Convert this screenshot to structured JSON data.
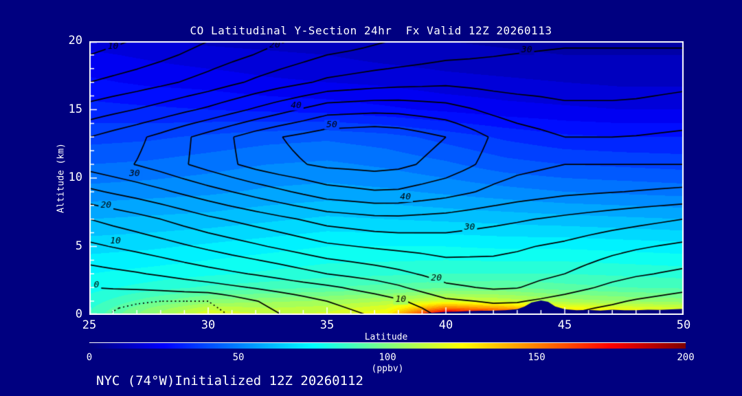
{
  "title": "CO Latitudinal Y-Section 24hr  Fx Valid 12Z 20260113",
  "footer": "NYC (74°W)Initialized 12Z 20260112",
  "colors": {
    "background": "#000080",
    "axis": "#ffffff",
    "text": "#ffffff",
    "contour_line": "#000000",
    "terrain": "#000080"
  },
  "axes": {
    "x": {
      "title": "Latitude",
      "ticks": [
        "25",
        "30",
        "35",
        "40",
        "45",
        "50"
      ]
    },
    "y": {
      "title": "Altitude (km)",
      "ticks": [
        "20",
        "15",
        "10",
        "5",
        "0"
      ]
    }
  },
  "colorbar": {
    "ticks": [
      "0",
      "50",
      "100",
      "150",
      "200"
    ],
    "units": "(ppbv)"
  },
  "chart_data": {
    "type": "heatmap",
    "title": "CO Latitudinal Y-Section 24hr  Fx Valid 12Z 20260113",
    "xlabel": "Latitude",
    "ylabel": "Altitude (km)",
    "xlim": [
      25,
      50
    ],
    "ylim": [
      0,
      20
    ],
    "x_minor_step": 1,
    "y_minor_step": 1,
    "fill_units": "ppbv",
    "fill_range": [
      0,
      200
    ],
    "fill_band_step": 5,
    "colormap": "jet",
    "fill_grid": {
      "lats": [
        25,
        27.5,
        30,
        32.5,
        35,
        37.5,
        40,
        42.5,
        45,
        47.5,
        50
      ],
      "alts": [
        20,
        19,
        17,
        15,
        13,
        11,
        9,
        7,
        5,
        3,
        2,
        1,
        0.5,
        0
      ],
      "values": [
        [
          18,
          16,
          14,
          13,
          12,
          11,
          10,
          9,
          8,
          8,
          8
        ],
        [
          21,
          19,
          17,
          16,
          15,
          13,
          12,
          11,
          10,
          10,
          10
        ],
        [
          26,
          24,
          23,
          21,
          20,
          19,
          17,
          16,
          15,
          14,
          14
        ],
        [
          32,
          31,
          30,
          29,
          28,
          26,
          24,
          22,
          21,
          20,
          20
        ],
        [
          38,
          39,
          41,
          43,
          44,
          42,
          38,
          34,
          31,
          30,
          30
        ],
        [
          45,
          46,
          48,
          50,
          51,
          49,
          46,
          42,
          40,
          39,
          38
        ],
        [
          52,
          53,
          54,
          56,
          57,
          56,
          54,
          52,
          50,
          49,
          48
        ],
        [
          60,
          61,
          62,
          64,
          66,
          65,
          64,
          63,
          62,
          61,
          60
        ],
        [
          68,
          69,
          71,
          73,
          75,
          75,
          75,
          74,
          74,
          73,
          72
        ],
        [
          75,
          77,
          79,
          81,
          83,
          84,
          85,
          85,
          85,
          84,
          83
        ],
        [
          78,
          82,
          86,
          88,
          90,
          92,
          94,
          95,
          92,
          90,
          89
        ],
        [
          82,
          93,
          102,
          104,
          106,
          110,
          118,
          114,
          108,
          105,
          103
        ],
        [
          84,
          100,
          113,
          110,
          112,
          119,
          152,
          142,
          124,
          119,
          116
        ],
        [
          86,
          104,
          120,
          116,
          117,
          126,
          195,
          182,
          140,
          133,
          128
        ]
      ]
    },
    "contour_grid": {
      "lats": [
        25,
        27.5,
        30,
        32.5,
        35,
        37.5,
        40,
        42.5,
        45,
        47.5,
        50
      ],
      "alts": [
        20,
        19,
        17,
        15,
        13,
        11,
        9,
        7,
        5,
        3,
        2,
        1,
        0.5,
        0
      ],
      "values": [
        [
          8,
          11,
          15,
          19,
          22,
          25,
          27,
          28,
          29,
          29,
          29
        ],
        [
          10,
          13,
          17,
          21,
          25,
          27,
          29,
          30,
          31,
          31,
          31
        ],
        [
          15,
          18,
          22,
          27,
          31,
          33,
          34,
          33,
          33,
          33,
          34
        ],
        [
          22,
          26,
          31,
          37,
          43,
          44,
          42,
          38,
          36,
          36,
          37
        ],
        [
          30,
          35,
          42,
          49,
          53,
          54,
          50,
          43,
          40,
          40,
          41
        ],
        [
          32,
          36,
          42,
          48,
          51,
          52,
          48,
          42,
          40,
          40,
          40
        ],
        [
          24,
          28,
          33,
          38,
          43,
          45,
          42,
          38,
          36,
          35,
          34
        ],
        [
          15,
          19,
          24,
          28,
          32,
          34,
          33,
          31,
          29,
          27,
          25
        ],
        [
          9,
          12,
          16,
          20,
          24,
          26,
          27,
          26,
          24,
          21,
          19
        ],
        [
          3,
          5,
          8,
          11,
          15,
          18,
          22,
          23,
          20,
          16,
          14
        ],
        [
          0,
          1,
          3,
          6,
          9,
          13,
          19,
          21,
          17,
          13,
          11
        ],
        [
          -3,
          -5,
          -5,
          1,
          5,
          8,
          14,
          16,
          13,
          10,
          8
        ],
        [
          -4,
          -6,
          -6,
          0,
          4,
          7,
          12,
          14,
          11,
          9,
          7
        ],
        [
          -4,
          -7,
          -7,
          -1,
          3,
          6,
          11,
          13,
          10,
          8,
          6
        ]
      ]
    },
    "contour_levels": {
      "solid": [
        0,
        5,
        10,
        15,
        20,
        25,
        30,
        35,
        40,
        45,
        50
      ],
      "dotted": [
        -5
      ]
    },
    "contour_labels": [
      {
        "text": "10",
        "lat": 26.0,
        "alt": 19.6
      },
      {
        "text": "20",
        "lat": 32.8,
        "alt": 19.7
      },
      {
        "text": "30",
        "lat": 43.4,
        "alt": 19.35
      },
      {
        "text": "30",
        "lat": 26.9,
        "alt": 10.3
      },
      {
        "text": "20",
        "lat": 25.7,
        "alt": 8.0
      },
      {
        "text": "10",
        "lat": 26.1,
        "alt": 5.4
      },
      {
        "text": "0",
        "lat": 25.3,
        "alt": 2.2
      },
      {
        "text": "40",
        "lat": 33.7,
        "alt": 15.3
      },
      {
        "text": "50",
        "lat": 35.2,
        "alt": 13.9
      },
      {
        "text": "40",
        "lat": 38.3,
        "alt": 8.6
      },
      {
        "text": "30",
        "lat": 41.0,
        "alt": 6.4
      },
      {
        "text": "20",
        "lat": 39.6,
        "alt": 2.7
      },
      {
        "text": "10",
        "lat": 38.1,
        "alt": 1.1
      }
    ],
    "terrain_profile": [
      [
        38.6,
        0.02
      ],
      [
        39,
        0.1
      ],
      [
        39.5,
        0.16
      ],
      [
        40,
        0.22
      ],
      [
        40.5,
        0.24
      ],
      [
        41,
        0.28
      ],
      [
        41.5,
        0.3
      ],
      [
        42,
        0.3
      ],
      [
        42.5,
        0.34
      ],
      [
        43,
        0.42
      ],
      [
        43.3,
        0.6
      ],
      [
        43.6,
        0.9
      ],
      [
        44,
        1.05
      ],
      [
        44.3,
        0.95
      ],
      [
        44.6,
        0.62
      ],
      [
        45,
        0.42
      ],
      [
        45.5,
        0.34
      ],
      [
        46,
        0.36
      ],
      [
        46.5,
        0.32
      ],
      [
        47,
        0.38
      ],
      [
        47.5,
        0.34
      ],
      [
        48,
        0.34
      ],
      [
        48.5,
        0.38
      ],
      [
        49,
        0.36
      ],
      [
        49.5,
        0.4
      ],
      [
        50,
        0.44
      ]
    ]
  }
}
